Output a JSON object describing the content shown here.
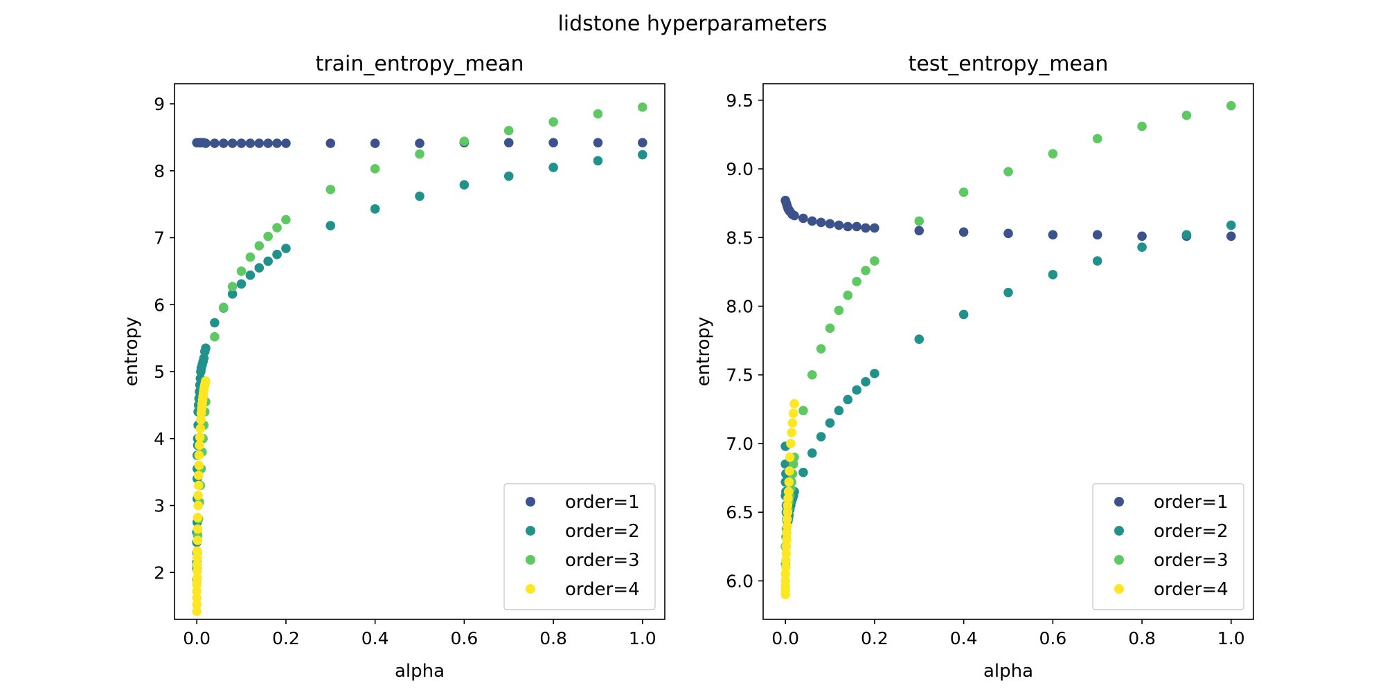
{
  "figure": {
    "suptitle": "lidstone hyperparameters"
  },
  "colors": {
    "order1": "#3b528b",
    "order2": "#21918c",
    "order3": "#5ec962",
    "order4": "#fde725"
  },
  "chart_data": [
    {
      "type": "scatter",
      "title": "train_entropy_mean",
      "xlabel": "alpha",
      "ylabel": "entropy",
      "xlim": [
        -0.05,
        1.05
      ],
      "ylim": [
        1.3,
        9.3
      ],
      "xticks": [
        0.0,
        0.2,
        0.4,
        0.6,
        0.8,
        1.0
      ],
      "xtick_labels": [
        "0.0",
        "0.2",
        "0.4",
        "0.6",
        "0.8",
        "1.0"
      ],
      "yticks": [
        2,
        3,
        4,
        5,
        6,
        7,
        8,
        9
      ],
      "ytick_labels": [
        "2",
        "3",
        "4",
        "5",
        "6",
        "7",
        "8",
        "9"
      ],
      "legend_position": "lower-right",
      "series": [
        {
          "name": "order=1",
          "color": "#3b528b",
          "x": [
            0.0,
            0.002,
            0.004,
            0.006,
            0.008,
            0.01,
            0.015,
            0.02,
            0.04,
            0.06,
            0.08,
            0.1,
            0.12,
            0.14,
            0.16,
            0.18,
            0.2,
            0.3,
            0.4,
            0.5,
            0.6,
            0.7,
            0.8,
            0.9,
            1.0
          ],
          "y": [
            8.42,
            8.42,
            8.42,
            8.42,
            8.42,
            8.42,
            8.42,
            8.41,
            8.41,
            8.41,
            8.41,
            8.41,
            8.41,
            8.41,
            8.41,
            8.41,
            8.41,
            8.41,
            8.41,
            8.41,
            8.42,
            8.42,
            8.42,
            8.42,
            8.42
          ]
        },
        {
          "name": "order=2",
          "color": "#21918c",
          "x": [
            0.0,
            0.0,
            0.0,
            0.0,
            0.0,
            0.001,
            0.001,
            0.001,
            0.001,
            0.001,
            0.002,
            0.002,
            0.003,
            0.003,
            0.004,
            0.005,
            0.006,
            0.007,
            0.008,
            0.009,
            0.01,
            0.012,
            0.014,
            0.016,
            0.018,
            0.02,
            0.04,
            0.06,
            0.08,
            0.1,
            0.12,
            0.14,
            0.16,
            0.18,
            0.2,
            0.3,
            0.4,
            0.5,
            0.6,
            0.7,
            0.8,
            0.9,
            1.0
          ],
          "y": [
            2.6,
            2.45,
            2.3,
            2.15,
            2.05,
            2.75,
            3.1,
            3.4,
            3.55,
            3.75,
            3.9,
            4.0,
            4.2,
            4.4,
            4.5,
            4.6,
            4.7,
            4.8,
            4.9,
            5.0,
            5.05,
            5.1,
            5.15,
            5.2,
            5.3,
            5.35,
            5.73,
            5.95,
            6.16,
            6.31,
            6.44,
            6.55,
            6.65,
            6.75,
            6.84,
            7.18,
            7.43,
            7.62,
            7.79,
            7.92,
            8.05,
            8.15,
            8.24
          ]
        },
        {
          "name": "order=3",
          "color": "#5ec962",
          "x": [
            0.0,
            0.0,
            0.001,
            0.002,
            0.004,
            0.006,
            0.008,
            0.01,
            0.012,
            0.014,
            0.016,
            0.018,
            0.02,
            0.04,
            0.06,
            0.08,
            0.1,
            0.12,
            0.14,
            0.16,
            0.18,
            0.2,
            0.3,
            0.4,
            0.5,
            0.6,
            0.7,
            0.8,
            0.9,
            1.0
          ],
          "y": [
            1.9,
            2.1,
            2.3,
            2.55,
            2.8,
            3.05,
            3.3,
            3.55,
            3.8,
            4.0,
            4.2,
            4.4,
            4.55,
            5.52,
            5.96,
            6.27,
            6.5,
            6.71,
            6.88,
            7.02,
            7.15,
            7.27,
            7.72,
            8.03,
            8.25,
            8.44,
            8.6,
            8.73,
            8.85,
            8.95
          ]
        },
        {
          "name": "order=4",
          "color": "#fde725",
          "x": [
            0.0,
            0.0,
            0.0,
            0.0,
            0.0,
            0.001,
            0.001,
            0.001,
            0.001,
            0.001,
            0.002,
            0.002,
            0.002,
            0.003,
            0.003,
            0.004,
            0.004,
            0.005,
            0.005,
            0.006,
            0.007,
            0.008,
            0.009,
            0.01,
            0.011,
            0.012,
            0.013,
            0.014,
            0.015,
            0.016,
            0.017,
            0.018,
            0.019,
            0.02
          ],
          "y": [
            1.42,
            1.52,
            1.62,
            1.72,
            1.82,
            1.92,
            2.02,
            2.12,
            2.22,
            2.32,
            2.48,
            2.65,
            2.82,
            3.0,
            3.15,
            3.3,
            3.45,
            3.6,
            3.75,
            3.9,
            4.02,
            4.15,
            4.28,
            4.38,
            4.45,
            4.52,
            4.58,
            4.63,
            4.68,
            4.73,
            4.77,
            4.8,
            4.83,
            4.86
          ]
        }
      ]
    },
    {
      "type": "scatter",
      "title": "test_entropy_mean",
      "xlabel": "alpha",
      "ylabel": "entropy",
      "xlim": [
        -0.05,
        1.05
      ],
      "ylim": [
        5.72,
        9.62
      ],
      "xticks": [
        0.0,
        0.2,
        0.4,
        0.6,
        0.8,
        1.0
      ],
      "xtick_labels": [
        "0.0",
        "0.2",
        "0.4",
        "0.6",
        "0.8",
        "1.0"
      ],
      "yticks": [
        6.0,
        6.5,
        7.0,
        7.5,
        8.0,
        8.5,
        9.0,
        9.5
      ],
      "ytick_labels": [
        "6.0",
        "6.5",
        "7.0",
        "7.5",
        "8.0",
        "8.5",
        "9.0",
        "9.5"
      ],
      "legend_position": "lower-right",
      "series": [
        {
          "name": "order=1",
          "color": "#3b528b",
          "x": [
            0.0,
            0.002,
            0.004,
            0.006,
            0.008,
            0.01,
            0.015,
            0.02,
            0.04,
            0.06,
            0.08,
            0.1,
            0.12,
            0.14,
            0.16,
            0.18,
            0.2,
            0.3,
            0.4,
            0.5,
            0.6,
            0.7,
            0.8,
            0.9,
            1.0
          ],
          "y": [
            8.77,
            8.75,
            8.73,
            8.71,
            8.7,
            8.69,
            8.67,
            8.66,
            8.64,
            8.62,
            8.61,
            8.6,
            8.59,
            8.58,
            8.58,
            8.57,
            8.57,
            8.55,
            8.54,
            8.53,
            8.52,
            8.52,
            8.51,
            8.51,
            8.51
          ]
        },
        {
          "name": "order=2",
          "color": "#21918c",
          "x": [
            0.0,
            0.0,
            0.0,
            0.0,
            0.001,
            0.001,
            0.002,
            0.002,
            0.003,
            0.004,
            0.005,
            0.006,
            0.007,
            0.008,
            0.01,
            0.012,
            0.014,
            0.016,
            0.018,
            0.02,
            0.04,
            0.06,
            0.08,
            0.1,
            0.12,
            0.14,
            0.16,
            0.18,
            0.2,
            0.3,
            0.4,
            0.5,
            0.6,
            0.7,
            0.8,
            0.9,
            1.0
          ],
          "y": [
            6.98,
            6.85,
            6.72,
            6.62,
            6.78,
            6.65,
            6.55,
            6.5,
            6.45,
            6.44,
            6.43,
            6.44,
            6.46,
            6.48,
            6.52,
            6.55,
            6.58,
            6.6,
            6.62,
            6.65,
            6.79,
            6.93,
            7.05,
            7.15,
            7.24,
            7.32,
            7.39,
            7.45,
            7.51,
            7.76,
            7.94,
            8.1,
            8.23,
            8.33,
            8.43,
            8.52,
            8.59
          ]
        },
        {
          "name": "order=3",
          "color": "#5ec962",
          "x": [
            0.0,
            0.0,
            0.001,
            0.002,
            0.004,
            0.006,
            0.008,
            0.01,
            0.012,
            0.014,
            0.016,
            0.018,
            0.02,
            0.04,
            0.06,
            0.08,
            0.1,
            0.12,
            0.14,
            0.16,
            0.18,
            0.2,
            0.3,
            0.4,
            0.5,
            0.6,
            0.7,
            0.8,
            0.9,
            1.0
          ],
          "y": [
            6.12,
            6.25,
            6.32,
            6.38,
            6.45,
            6.52,
            6.58,
            6.62,
            6.67,
            6.72,
            6.78,
            6.85,
            6.9,
            7.24,
            7.5,
            7.69,
            7.84,
            7.97,
            8.08,
            8.18,
            8.26,
            8.33,
            8.62,
            8.83,
            8.98,
            9.11,
            9.22,
            9.31,
            9.39,
            9.46
          ]
        },
        {
          "name": "order=4",
          "color": "#fde725",
          "x": [
            0.0,
            0.0,
            0.0,
            0.0,
            0.0,
            0.001,
            0.001,
            0.002,
            0.002,
            0.003,
            0.003,
            0.004,
            0.004,
            0.005,
            0.005,
            0.006,
            0.007,
            0.008,
            0.009,
            0.01,
            0.012,
            0.014,
            0.016,
            0.018,
            0.02
          ],
          "y": [
            5.9,
            5.93,
            5.96,
            6.0,
            6.05,
            6.1,
            6.15,
            6.2,
            6.25,
            6.3,
            6.35,
            6.4,
            6.45,
            6.5,
            6.55,
            6.6,
            6.65,
            6.72,
            6.8,
            6.9,
            7.0,
            7.08,
            7.15,
            7.22,
            7.29
          ]
        }
      ]
    }
  ]
}
